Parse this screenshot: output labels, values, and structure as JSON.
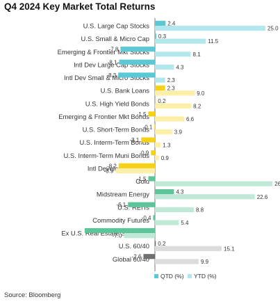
{
  "chart_data": {
    "type": "bar",
    "orientation": "horizontal",
    "title": "Q4 2024 Key Market Total Returns",
    "categories": [
      "U.S. Large Cap Stocks",
      "U.S. Small & Micro Cap",
      "Emerging & Frontier Mkt Stocks",
      "Intl Dev Large Cap Stocks",
      "Intl Dev Small & Micro Stocks",
      "U.S. Bank Loans",
      "U.S. High Yield Bonds",
      "Emerging & Frontier Mkt Bonds",
      "U.S. Short-Term Bonds",
      "U.S. Interm-Term Bonds",
      "U.S. Interm-Term Muni Bonds",
      "Intl Developed Bonds",
      "Gold",
      "Midstream Energy",
      "U.S. REITs",
      "Commodity Futures",
      "Ex U.S. Real Estate Securities",
      "U.S. 60/40",
      "Global 60/40"
    ],
    "series": [
      {
        "name": "QTD (%)",
        "values": [
          2.4,
          0.3,
          -7.8,
          -8.1,
          -8.3,
          2.3,
          0.2,
          -1.5,
          -0.1,
          -3.1,
          -0.9,
          -8.2,
          -1.5,
          4.3,
          -6.1,
          -0.4,
          -15.9,
          0.2,
          -2.6
        ],
        "labels": [
          "2.4",
          "0.3",
          "-7.8",
          "-8.1",
          "-8.3",
          "2.3",
          "0.2",
          "-1.5",
          "-0.1",
          "-3.1",
          "-0.9",
          "-8.2",
          "-1.5",
          "4.3",
          "-6.1",
          "-0.4",
          "",
          "0.2",
          "-2.6"
        ]
      },
      {
        "name": "YTD (%)",
        "values": [
          25.0,
          11.5,
          8.1,
          4.3,
          2.3,
          9.0,
          8.2,
          6.6,
          3.9,
          1.3,
          0.9,
          -8.9,
          26.6,
          22.6,
          8.8,
          5.4,
          -7.0,
          15.1,
          9.9
        ],
        "labels": [
          "25.0",
          "11.5",
          "8.1",
          "4.3",
          "2.3",
          "9.0",
          "8.2",
          "6.6",
          "3.9",
          "1.3",
          "0.9",
          "-8.9",
          "26.6",
          "22.6",
          "8.8",
          "5.4",
          "-7.0",
          "15.1",
          "9.9"
        ]
      }
    ],
    "group_colors": [
      {
        "groups": [
          0,
          1,
          2,
          3,
          4
        ],
        "qtd": "#5bc8d4",
        "ytd": "#b3e7ee"
      },
      {
        "groups": [
          5,
          6,
          7,
          8,
          9,
          10,
          11
        ],
        "qtd": "#f7d116",
        "ytd": "#fdeea8"
      },
      {
        "groups": [
          12,
          13,
          14,
          15,
          16
        ],
        "qtd": "#5ec49a",
        "ytd": "#bfe9d6"
      },
      {
        "groups": [
          17,
          18
        ],
        "qtd": "#6f6f6f",
        "ytd": "#dcdcdc"
      }
    ],
    "xlim": [
      -16,
      27
    ],
    "grid": false,
    "legend_position": "bottom",
    "legend_colors": {
      "qtd": "#5bc8d4",
      "ytd": "#b3e7ee"
    }
  },
  "source": "Source: Bloomberg"
}
